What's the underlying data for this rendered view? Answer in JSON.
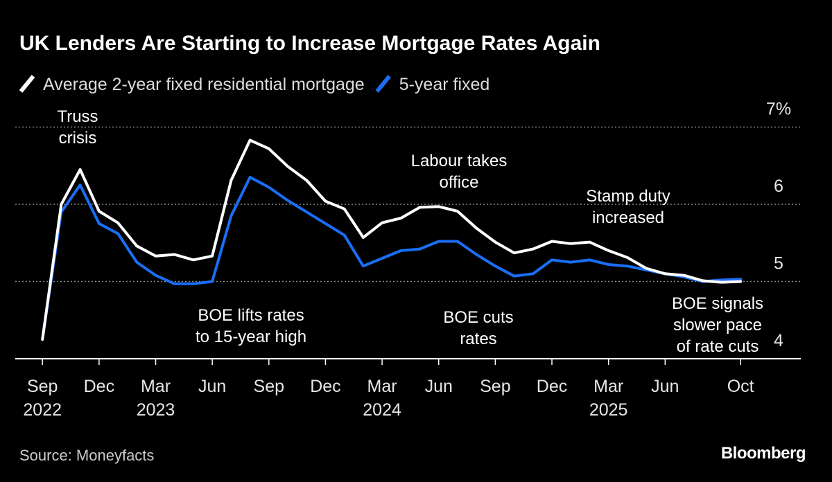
{
  "chart_data": {
    "type": "line",
    "title": "UK Lenders Are Starting to Increase Mortgage Rates Again",
    "source": "Source: Moneyfacts",
    "brand": "Bloomberg",
    "x": [
      "2022-09",
      "2022-10",
      "2022-11",
      "2022-12",
      "2023-01",
      "2023-02",
      "2023-03",
      "2023-04",
      "2023-05",
      "2023-06",
      "2023-07",
      "2023-08",
      "2023-09",
      "2023-10",
      "2023-11",
      "2023-12",
      "2024-01",
      "2024-02",
      "2024-03",
      "2024-04",
      "2024-05",
      "2024-06",
      "2024-07",
      "2024-08",
      "2024-09",
      "2024-10",
      "2024-11",
      "2024-12",
      "2025-01",
      "2025-02",
      "2025-03",
      "2025-04",
      "2025-05",
      "2025-06",
      "2025-07",
      "2025-08",
      "2025-09",
      "2025-10"
    ],
    "series": [
      {
        "name": "Average 2-year fixed residential mortgage",
        "color": "#ffffff",
        "values": [
          4.25,
          6.0,
          6.45,
          5.91,
          5.76,
          5.46,
          5.33,
          5.35,
          5.28,
          5.33,
          6.31,
          6.83,
          6.72,
          6.49,
          6.31,
          6.04,
          5.94,
          5.57,
          5.76,
          5.82,
          5.96,
          5.97,
          5.91,
          5.69,
          5.51,
          5.37,
          5.42,
          5.52,
          5.49,
          5.51,
          5.4,
          5.31,
          5.17,
          5.1,
          5.08,
          5.01,
          4.99,
          5.0
        ]
      },
      {
        "name": "5-year fixed",
        "color": "#1a6ef5",
        "values": [
          4.25,
          5.9,
          6.25,
          5.75,
          5.62,
          5.25,
          5.08,
          4.97,
          4.97,
          5.0,
          5.85,
          6.35,
          6.22,
          6.05,
          5.9,
          5.75,
          5.6,
          5.2,
          5.3,
          5.4,
          5.42,
          5.52,
          5.52,
          5.35,
          5.2,
          5.07,
          5.1,
          5.28,
          5.25,
          5.28,
          5.22,
          5.2,
          5.15,
          5.1,
          5.06,
          5.0,
          5.02,
          5.03
        ]
      }
    ],
    "xlim": [
      "2022-08",
      "2025-12"
    ],
    "xticks": [
      {
        "value": "2022-09",
        "label": [
          "Sep",
          "2022"
        ]
      },
      {
        "value": "2022-12",
        "label": [
          "Dec"
        ]
      },
      {
        "value": "2023-03",
        "label": [
          "Mar",
          "2023"
        ]
      },
      {
        "value": "2023-06",
        "label": [
          "Jun"
        ]
      },
      {
        "value": "2023-09",
        "label": [
          "Sep"
        ]
      },
      {
        "value": "2023-12",
        "label": [
          "Dec"
        ]
      },
      {
        "value": "2024-03",
        "label": [
          "Mar",
          "2024"
        ]
      },
      {
        "value": "2024-06",
        "label": [
          "Jun"
        ]
      },
      {
        "value": "2024-09",
        "label": [
          "Sep"
        ]
      },
      {
        "value": "2024-12",
        "label": [
          "Dec"
        ]
      },
      {
        "value": "2025-03",
        "label": [
          "Mar",
          "2025"
        ]
      },
      {
        "value": "2025-06",
        "label": [
          "Jun"
        ]
      },
      {
        "value": "2025-10",
        "label": [
          "Oct"
        ]
      }
    ],
    "ylim": [
      4,
      7.3
    ],
    "yticks": [
      4,
      5,
      6,
      {
        "value": 7,
        "label": "7%"
      }
    ],
    "grid": true,
    "annotations": [
      [
        "Truss",
        "crisis"
      ],
      [
        "BOE lifts rates",
        "to 15-year high"
      ],
      [
        "Labour takes",
        "office"
      ],
      [
        "Stamp duty",
        "increased"
      ],
      [
        "BOE cuts",
        "rates"
      ],
      [
        "BOE signals",
        "slower pace",
        "of rate cuts"
      ]
    ]
  }
}
